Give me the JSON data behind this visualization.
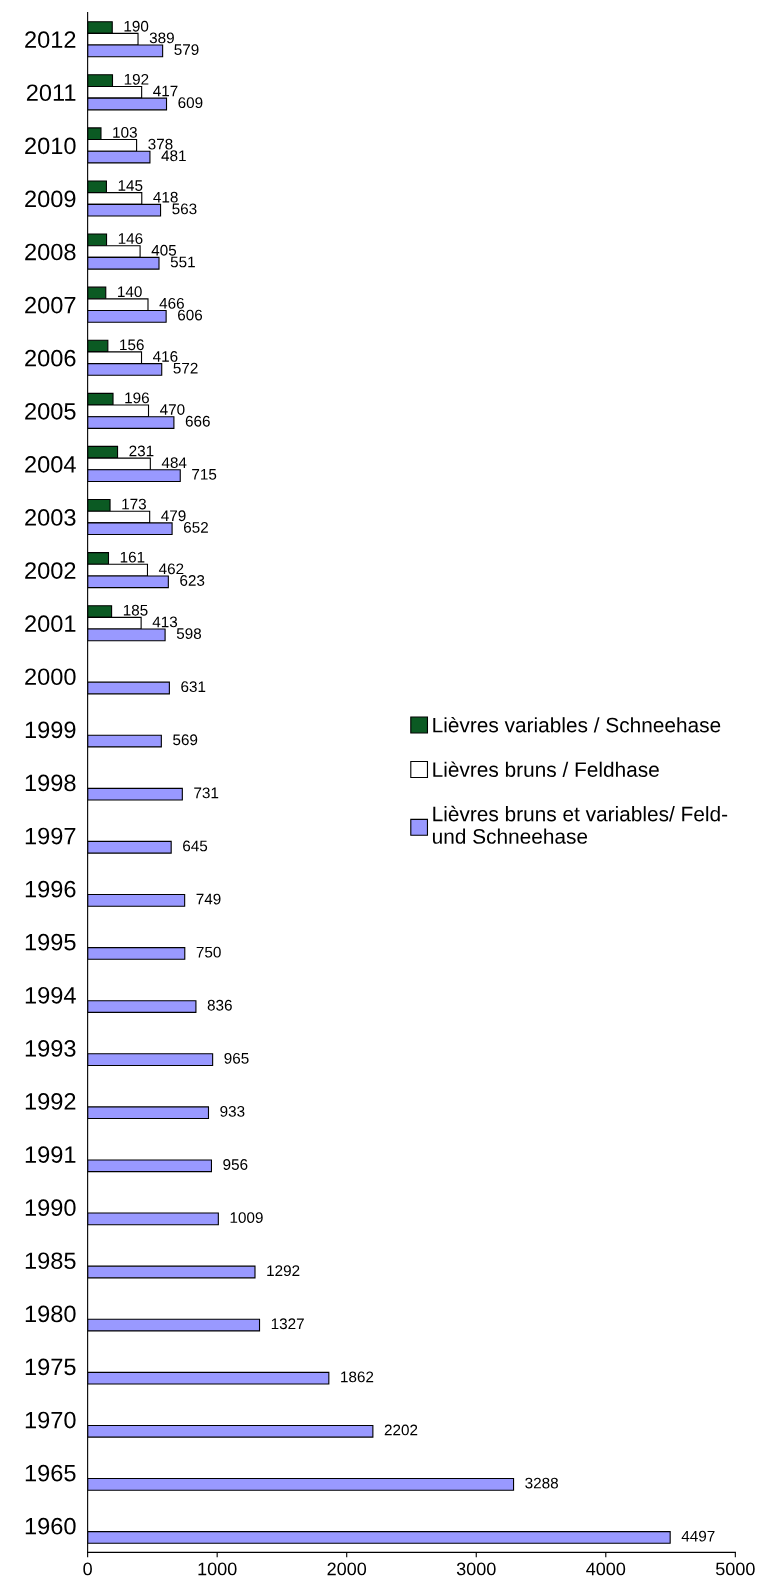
{
  "chart_data": {
    "type": "bar",
    "orientation": "horizontal",
    "categories": [
      "2012",
      "2011",
      "2010",
      "2009",
      "2008",
      "2007",
      "2006",
      "2005",
      "2004",
      "2003",
      "2002",
      "2001",
      "2000",
      "1999",
      "1998",
      "1997",
      "1996",
      "1995",
      "1994",
      "1993",
      "1992",
      "1991",
      "1990",
      "1985",
      "1980",
      "1975",
      "1970",
      "1965",
      "1960"
    ],
    "series": [
      {
        "name": "Lièvres variables / Schneehase",
        "color": "#0b5a23",
        "values": [
          190,
          192,
          103,
          145,
          146,
          140,
          156,
          196,
          231,
          173,
          161,
          185,
          null,
          null,
          null,
          null,
          null,
          null,
          null,
          null,
          null,
          null,
          null,
          null,
          null,
          null,
          null,
          null,
          null
        ]
      },
      {
        "name": "Lièvres bruns / Feldhase",
        "color": "#ffffff",
        "values": [
          389,
          417,
          378,
          418,
          405,
          466,
          416,
          470,
          484,
          479,
          462,
          413,
          null,
          null,
          null,
          null,
          null,
          null,
          null,
          null,
          null,
          null,
          null,
          null,
          null,
          null,
          null,
          null,
          null
        ]
      },
      {
        "name": "Lièvres bruns et variables/ Feld-\nund Schneehase",
        "color": "#9999ff",
        "values": [
          579,
          609,
          481,
          563,
          551,
          606,
          572,
          666,
          715,
          652,
          623,
          598,
          631,
          569,
          731,
          645,
          749,
          750,
          836,
          965,
          933,
          956,
          1009,
          1292,
          1327,
          1862,
          2202,
          3288,
          4497
        ]
      }
    ],
    "xlim": [
      0,
      5000
    ],
    "xticks": [
      0,
      1000,
      2000,
      3000,
      4000,
      5000
    ],
    "data_labels": true,
    "legend": "right",
    "grid": false
  }
}
